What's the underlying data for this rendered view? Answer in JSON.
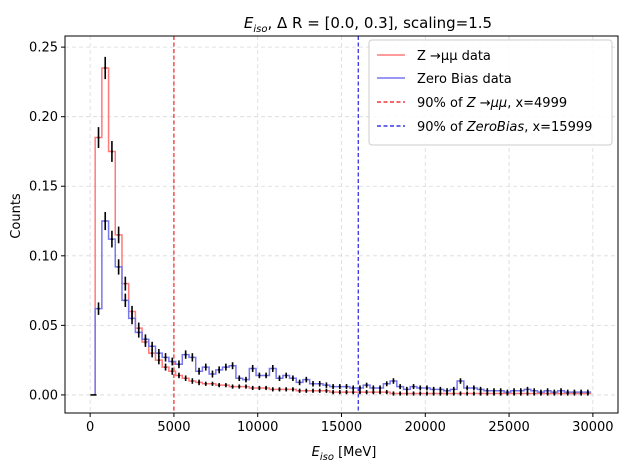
{
  "chart_data": {
    "type": "histogram-step",
    "title": {
      "sym": "E",
      "sub": "iso",
      "rest": ", Δ R = [0.0, 0.3], scaling=1.5"
    },
    "xlabel": {
      "sym": "E",
      "sub": "iso",
      "rest": " [MeV]"
    },
    "ylabel": "Counts",
    "xlim": [
      -1500,
      31500
    ],
    "ylim": [
      -0.013,
      0.258
    ],
    "xticks": [
      "0",
      "5000",
      "10000",
      "15000",
      "20000",
      "25000",
      "30000"
    ],
    "xtick_values": [
      0,
      5000,
      10000,
      15000,
      20000,
      25000,
      30000
    ],
    "yticks": [
      "0.00",
      "0.05",
      "0.10",
      "0.15",
      "0.20",
      "0.25"
    ],
    "ytick_values": [
      0,
      0.05,
      0.1,
      0.15,
      0.2,
      0.25
    ],
    "grid": true,
    "legend_position": "upper right",
    "bin_edges": [
      300,
      700,
      1100,
      1500,
      1900,
      2300,
      2700,
      3100,
      3500,
      3900,
      4300,
      4700,
      5100,
      5500,
      5900,
      6300,
      6700,
      7100,
      7500,
      7900,
      8300,
      8700,
      9100,
      9500,
      9900,
      10300,
      10700,
      11100,
      11500,
      11900,
      12300,
      12700,
      13100,
      13500,
      13900,
      14300,
      14700,
      15100,
      15500,
      15900,
      16300,
      16700,
      17100,
      17500,
      17900,
      18300,
      18700,
      19100,
      19500,
      19900,
      20300,
      20700,
      21100,
      21500,
      21900,
      22300,
      22700,
      23100,
      23500,
      23900,
      24300,
      24700,
      25100,
      25500,
      25900,
      26300,
      26700,
      27100,
      27500,
      27900,
      28300,
      28700,
      29100,
      29500,
      29900
    ],
    "series": [
      {
        "name": "Z →μμ data",
        "color": "#ff7a7a",
        "values": [
          0.185,
          0.235,
          0.175,
          0.115,
          0.08,
          0.06,
          0.048,
          0.038,
          0.03,
          0.025,
          0.02,
          0.017,
          0.014,
          0.012,
          0.01,
          0.009,
          0.008,
          0.008,
          0.007,
          0.007,
          0.006,
          0.006,
          0.006,
          0.005,
          0.005,
          0.005,
          0.004,
          0.004,
          0.004,
          0.004,
          0.003,
          0.003,
          0.003,
          0.003,
          0.003,
          0.002,
          0.002,
          0.002,
          0.002,
          0.002,
          0.002,
          0.002,
          0.002,
          0.002,
          0.001,
          0.001,
          0.001,
          0.001,
          0.001,
          0.001,
          0.001,
          0.001,
          0.001,
          0.001,
          0.001,
          0.001,
          0.001,
          0.001,
          0.001,
          0.001,
          0.001,
          0.001,
          0.001,
          0.001,
          0.001,
          0.001,
          0.001,
          0.001,
          0.001,
          0.001,
          0.001,
          0.001,
          0.001,
          0.001
        ],
        "errors": [
          0.0075,
          0.008,
          0.0075,
          0.006,
          0.005,
          0.004,
          0.004,
          0.0035,
          0.003,
          0.003,
          0.0025,
          0.0025,
          0.002,
          0.002,
          0.002,
          0.002,
          0.0015,
          0.0015,
          0.0015,
          0.0015,
          0.0015,
          0.0015,
          0.0015,
          0.0015,
          0.0015,
          0.0015,
          0.0015,
          0.0015,
          0.0015,
          0.0015,
          0.0015,
          0.0015,
          0.0015,
          0.0015,
          0.0015,
          0.0015,
          0.0015,
          0.0015,
          0.0015,
          0.0015,
          0.0015,
          0.0015,
          0.0015,
          0.0015,
          0.0015,
          0.0015,
          0.0015,
          0.0015,
          0.0015,
          0.0015,
          0.0015,
          0.0015,
          0.0015,
          0.0015,
          0.0015,
          0.0015,
          0.0015,
          0.0015,
          0.0015,
          0.0015,
          0.0015,
          0.0015,
          0.0015,
          0.0015,
          0.0015,
          0.0015,
          0.0015,
          0.0015,
          0.0015,
          0.0015,
          0.0015,
          0.0015,
          0.0015,
          0.0015
        ]
      },
      {
        "name": "Zero Bias data",
        "color": "#7777ee",
        "values": [
          0.062,
          0.125,
          0.112,
          0.092,
          0.068,
          0.055,
          0.045,
          0.04,
          0.035,
          0.03,
          0.027,
          0.024,
          0.022,
          0.029,
          0.027,
          0.017,
          0.02,
          0.015,
          0.018,
          0.02,
          0.021,
          0.012,
          0.011,
          0.019,
          0.014,
          0.014,
          0.019,
          0.012,
          0.014,
          0.012,
          0.009,
          0.011,
          0.008,
          0.008,
          0.007,
          0.006,
          0.006,
          0.006,
          0.005,
          0.005,
          0.007,
          0.005,
          0.005,
          0.008,
          0.01,
          0.006,
          0.004,
          0.006,
          0.005,
          0.005,
          0.004,
          0.004,
          0.003,
          0.004,
          0.01,
          0.005,
          0.005,
          0.004,
          0.003,
          0.003,
          0.003,
          0.002,
          0.003,
          0.003,
          0.004,
          0.003,
          0.002,
          0.003,
          0.002,
          0.003,
          0.002,
          0.002,
          0.002,
          0.002
        ],
        "errors": [
          0.0045,
          0.0065,
          0.006,
          0.0055,
          0.0048,
          0.0042,
          0.0038,
          0.0035,
          0.0032,
          0.003,
          0.003,
          0.0028,
          0.0028,
          0.003,
          0.003,
          0.0025,
          0.0025,
          0.0025,
          0.0025,
          0.0025,
          0.0025,
          0.002,
          0.002,
          0.0025,
          0.002,
          0.002,
          0.0025,
          0.002,
          0.002,
          0.002,
          0.002,
          0.002,
          0.002,
          0.002,
          0.002,
          0.0018,
          0.0018,
          0.0018,
          0.0018,
          0.0018,
          0.0018,
          0.0018,
          0.0018,
          0.0018,
          0.002,
          0.0018,
          0.0018,
          0.0018,
          0.0018,
          0.0018,
          0.0018,
          0.0018,
          0.0018,
          0.0018,
          0.002,
          0.0018,
          0.0018,
          0.0018,
          0.0018,
          0.0018,
          0.0018,
          0.0018,
          0.0018,
          0.0018,
          0.0018,
          0.0018,
          0.0018,
          0.0018,
          0.0018,
          0.0018,
          0.0018,
          0.0018,
          0.0018,
          0.0018
        ]
      }
    ],
    "vlines": [
      {
        "x": 4999,
        "color": "#ee1111",
        "label": {
          "pre": "90% of ",
          "italic": "Z →μμ",
          "post": ", x=4999"
        }
      },
      {
        "x": 15999,
        "color": "#1111dd",
        "label": {
          "pre": "90% of ",
          "italic": "ZeroBias",
          "post": ", x=15999"
        }
      }
    ],
    "leading_point": {
      "x": 200,
      "y": 0.0
    }
  }
}
